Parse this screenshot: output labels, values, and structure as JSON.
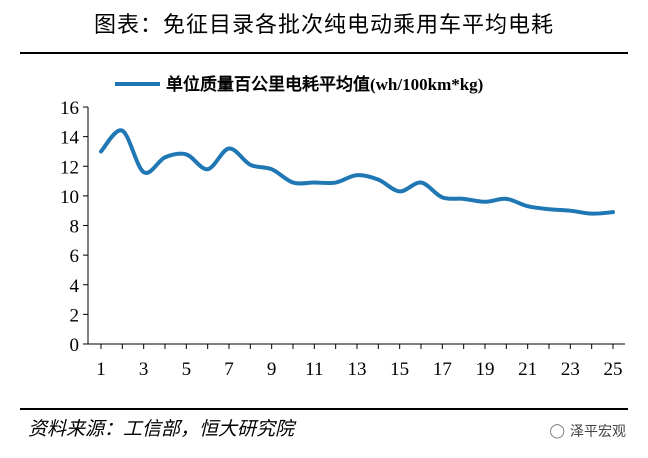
{
  "page": {
    "title": "图表：免征目录各批次纯电动乘用车平均电耗",
    "source": "资料来源：工信部，恒大研究院",
    "watermark": "泽平宏观",
    "watermark_icon": "wechat-icon"
  },
  "chart_data": {
    "type": "line",
    "x": [
      1,
      2,
      3,
      4,
      5,
      6,
      7,
      8,
      9,
      10,
      11,
      12,
      13,
      14,
      15,
      16,
      17,
      18,
      19,
      20,
      21,
      22,
      23,
      24,
      25
    ],
    "xticks": [
      1,
      3,
      5,
      7,
      9,
      11,
      13,
      15,
      17,
      19,
      21,
      23,
      25
    ],
    "xlim": [
      1,
      25
    ],
    "ylim": [
      0,
      16
    ],
    "yticks": [
      0,
      2,
      4,
      6,
      8,
      10,
      12,
      14,
      16
    ],
    "grid": false,
    "legend_position": "top",
    "series": [
      {
        "name": "单位质量百公里电耗平均值(wh/100km*kg)",
        "color": "#1f77b4",
        "values": [
          13.0,
          14.4,
          11.6,
          12.6,
          12.8,
          11.8,
          13.2,
          12.1,
          11.8,
          10.9,
          10.9,
          10.9,
          11.4,
          11.1,
          10.3,
          10.9,
          9.9,
          9.8,
          9.6,
          9.8,
          9.3,
          9.1,
          9.0,
          8.8,
          8.9
        ]
      }
    ]
  }
}
